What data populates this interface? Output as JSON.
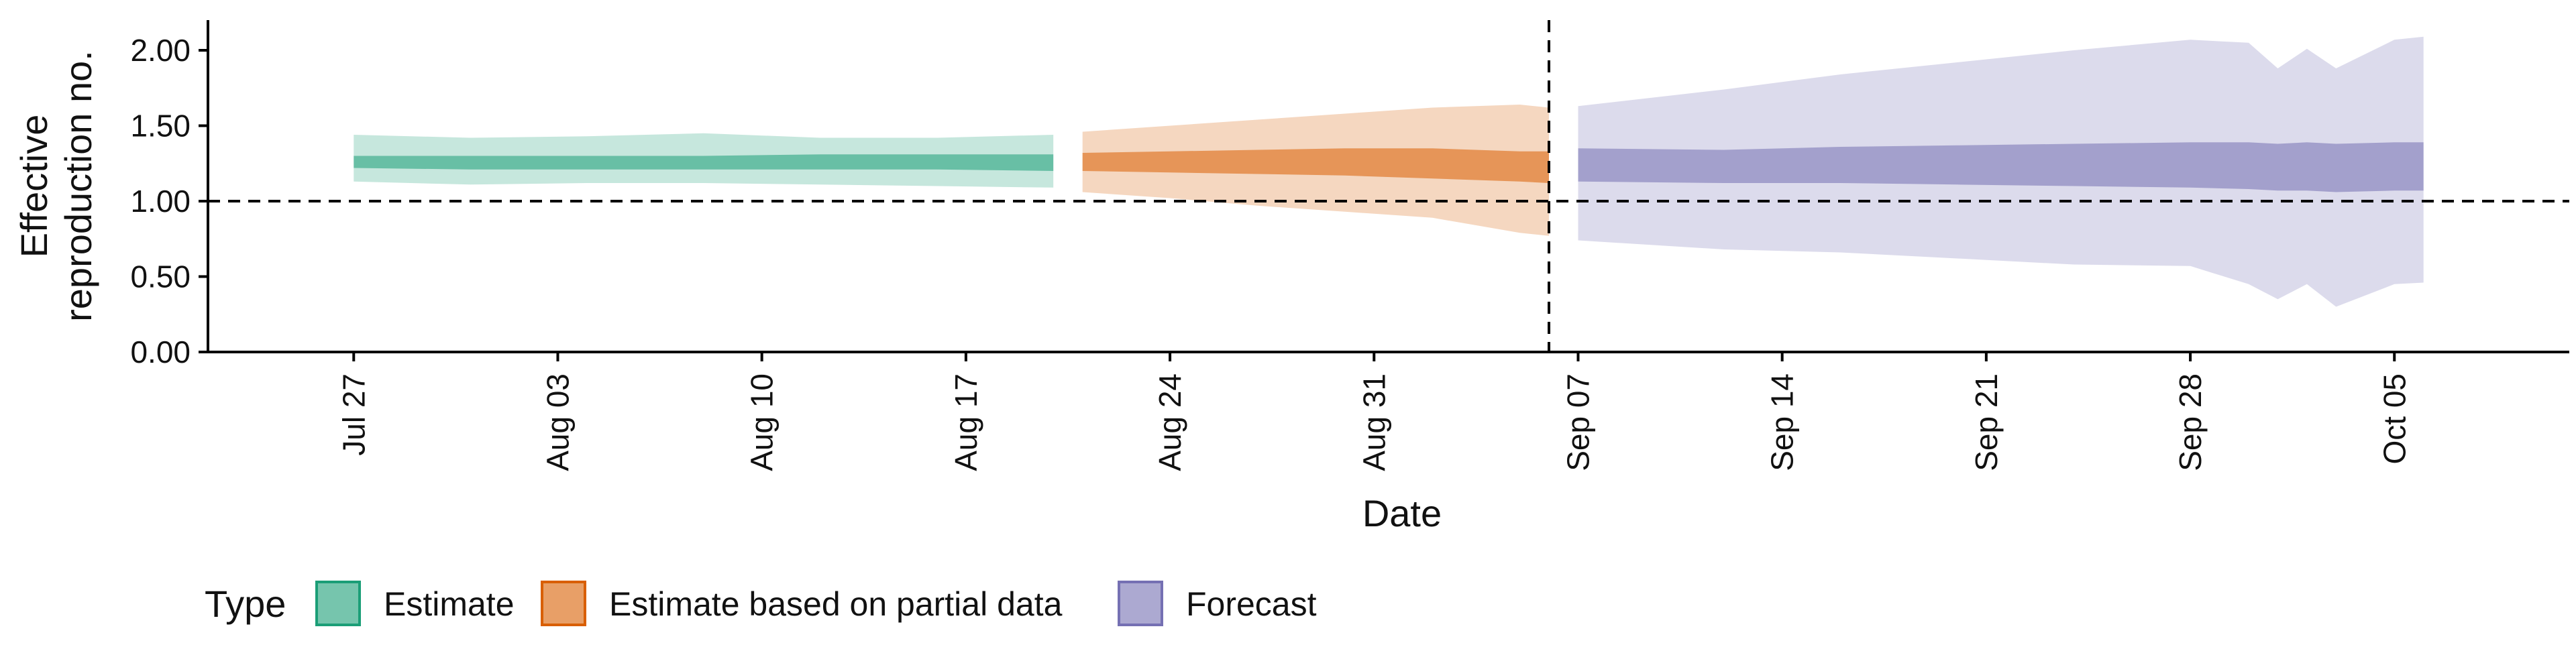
{
  "chart_data": {
    "type": "area",
    "xlabel": "Date",
    "ylabel_lines": [
      "Effective",
      "reproduction no."
    ],
    "ylim": [
      0,
      2.2
    ],
    "y_ticks": [
      0,
      0.5,
      1.0,
      1.5,
      2.0
    ],
    "y_tick_labels": [
      "0.00",
      "0.50",
      "1.00",
      "1.50",
      "2.00"
    ],
    "x_domain": [
      "2020-07-22",
      "2020-10-11"
    ],
    "x_ticks": [
      "2020-07-27",
      "2020-08-03",
      "2020-08-10",
      "2020-08-17",
      "2020-08-24",
      "2020-08-31",
      "2020-09-07",
      "2020-09-14",
      "2020-09-21",
      "2020-09-28",
      "2020-10-05"
    ],
    "x_tick_labels": [
      "Jul 27",
      "Aug 03",
      "Aug 10",
      "Aug 17",
      "Aug 24",
      "Aug 31",
      "Sep 07",
      "Sep 14",
      "Sep 21",
      "Sep 28",
      "Oct 05"
    ],
    "reference_lines": {
      "horizontal_y": 1.0,
      "vertical_date": "2020-09-06"
    },
    "legend": {
      "title": "Type",
      "placement": "bottom-left",
      "items": [
        "Estimate",
        "Estimate based on partial data",
        "Forecast"
      ]
    },
    "series": [
      {
        "name": "Estimate",
        "color": "#1b9e77",
        "dates": [
          "2020-07-27",
          "2020-07-31",
          "2020-08-04",
          "2020-08-08",
          "2020-08-12",
          "2020-08-16",
          "2020-08-20"
        ],
        "outer_lower": [
          1.13,
          1.11,
          1.12,
          1.12,
          1.11,
          1.1,
          1.09
        ],
        "outer_upper": [
          1.44,
          1.42,
          1.43,
          1.45,
          1.42,
          1.42,
          1.44
        ],
        "inner_lower": [
          1.22,
          1.21,
          1.21,
          1.21,
          1.21,
          1.21,
          1.2
        ],
        "inner_upper": [
          1.3,
          1.3,
          1.3,
          1.3,
          1.31,
          1.31,
          1.31
        ]
      },
      {
        "name": "Estimate based on partial data",
        "color": "#d95f02",
        "dates": [
          "2020-08-21",
          "2020-08-24",
          "2020-08-27",
          "2020-08-30",
          "2020-09-02",
          "2020-09-05",
          "2020-09-06"
        ],
        "outer_lower": [
          1.06,
          1.02,
          0.97,
          0.93,
          0.89,
          0.79,
          0.77
        ],
        "outer_upper": [
          1.46,
          1.5,
          1.54,
          1.58,
          1.62,
          1.64,
          1.62
        ],
        "inner_lower": [
          1.2,
          1.19,
          1.18,
          1.17,
          1.15,
          1.13,
          1.12
        ],
        "inner_upper": [
          1.32,
          1.33,
          1.34,
          1.35,
          1.35,
          1.33,
          1.33
        ]
      },
      {
        "name": "Forecast",
        "color": "#7570b3",
        "dates": [
          "2020-09-07",
          "2020-09-12",
          "2020-09-16",
          "2020-09-20",
          "2020-09-24",
          "2020-09-28",
          "2020-09-30",
          "2020-10-01",
          "2020-10-02",
          "2020-10-03",
          "2020-10-05",
          "2020-10-06"
        ],
        "outer_lower": [
          0.74,
          0.68,
          0.66,
          0.62,
          0.58,
          0.57,
          0.45,
          0.35,
          0.45,
          0.3,
          0.45,
          0.46
        ],
        "outer_upper": [
          1.63,
          1.74,
          1.84,
          1.92,
          2.0,
          2.07,
          2.05,
          1.88,
          2.01,
          1.88,
          2.07,
          2.09
        ],
        "inner_lower": [
          1.13,
          1.12,
          1.12,
          1.11,
          1.1,
          1.09,
          1.08,
          1.07,
          1.07,
          1.06,
          1.07,
          1.07
        ],
        "inner_upper": [
          1.35,
          1.34,
          1.36,
          1.37,
          1.38,
          1.39,
          1.39,
          1.38,
          1.39,
          1.38,
          1.39,
          1.39
        ]
      }
    ]
  }
}
